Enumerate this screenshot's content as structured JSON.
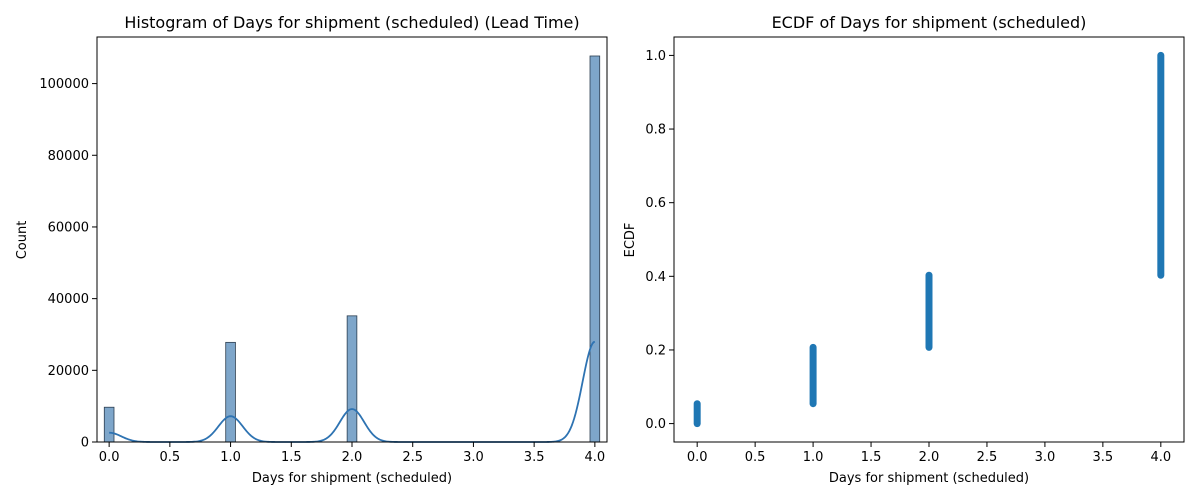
{
  "chart_data": [
    {
      "type": "bar",
      "title": "Histogram of Days for shipment (scheduled) (Lead Time)",
      "xlabel": "Days for shipment (scheduled)",
      "ylabel": "Count",
      "xlim": [
        -0.1,
        4.1
      ],
      "ylim": [
        0,
        113000
      ],
      "x_ticks": [
        0.0,
        0.5,
        1.0,
        1.5,
        2.0,
        2.5,
        3.0,
        3.5,
        4.0
      ],
      "x_tick_labels": [
        "0.0",
        "0.5",
        "1.0",
        "1.5",
        "2.0",
        "2.5",
        "3.0",
        "3.5",
        "4.0"
      ],
      "y_ticks": [
        0,
        20000,
        40000,
        60000,
        80000,
        100000
      ],
      "y_tick_labels": [
        "0",
        "20000",
        "40000",
        "60000",
        "80000",
        "100000"
      ],
      "bin_width": 0.08,
      "bars": [
        {
          "x": 0,
          "value": 9700
        },
        {
          "x": 1,
          "value": 27800
        },
        {
          "x": 2,
          "value": 35200
        },
        {
          "x": 4,
          "value": 107700
        }
      ],
      "kde_peaks": [
        {
          "x": 0,
          "value": 2600
        },
        {
          "x": 1,
          "value": 7200
        },
        {
          "x": 2,
          "value": 9200
        },
        {
          "x": 4,
          "value": 28000
        }
      ],
      "kde_sigma": 0.1,
      "bar_color": "#7ea6ca",
      "bar_edge": "#2c3e50",
      "line_color": "#2e73b2",
      "grid": false
    },
    {
      "type": "scatter",
      "title": "ECDF of Days for shipment (scheduled)",
      "xlabel": "Days for shipment (scheduled)",
      "ylabel": "ECDF",
      "xlim": [
        -0.2,
        4.2
      ],
      "ylim": [
        -0.05,
        1.05
      ],
      "x_ticks": [
        0.0,
        0.5,
        1.0,
        1.5,
        2.0,
        2.5,
        3.0,
        3.5,
        4.0
      ],
      "x_tick_labels": [
        "0.0",
        "0.5",
        "1.0",
        "1.5",
        "2.0",
        "2.5",
        "3.0",
        "3.5",
        "4.0"
      ],
      "y_ticks": [
        0.0,
        0.2,
        0.4,
        0.6,
        0.8,
        1.0
      ],
      "y_tick_labels": [
        "0.0",
        "0.2",
        "0.4",
        "0.6",
        "0.8",
        "1.0"
      ],
      "segments": [
        {
          "x": 0,
          "y_start": 0.0,
          "y_end": 0.054
        },
        {
          "x": 1,
          "y_start": 0.054,
          "y_end": 0.207
        },
        {
          "x": 2,
          "y_start": 0.207,
          "y_end": 0.403
        },
        {
          "x": 4,
          "y_start": 0.403,
          "y_end": 1.0
        }
      ],
      "marker_color": "#1f77b4",
      "grid": false
    }
  ]
}
